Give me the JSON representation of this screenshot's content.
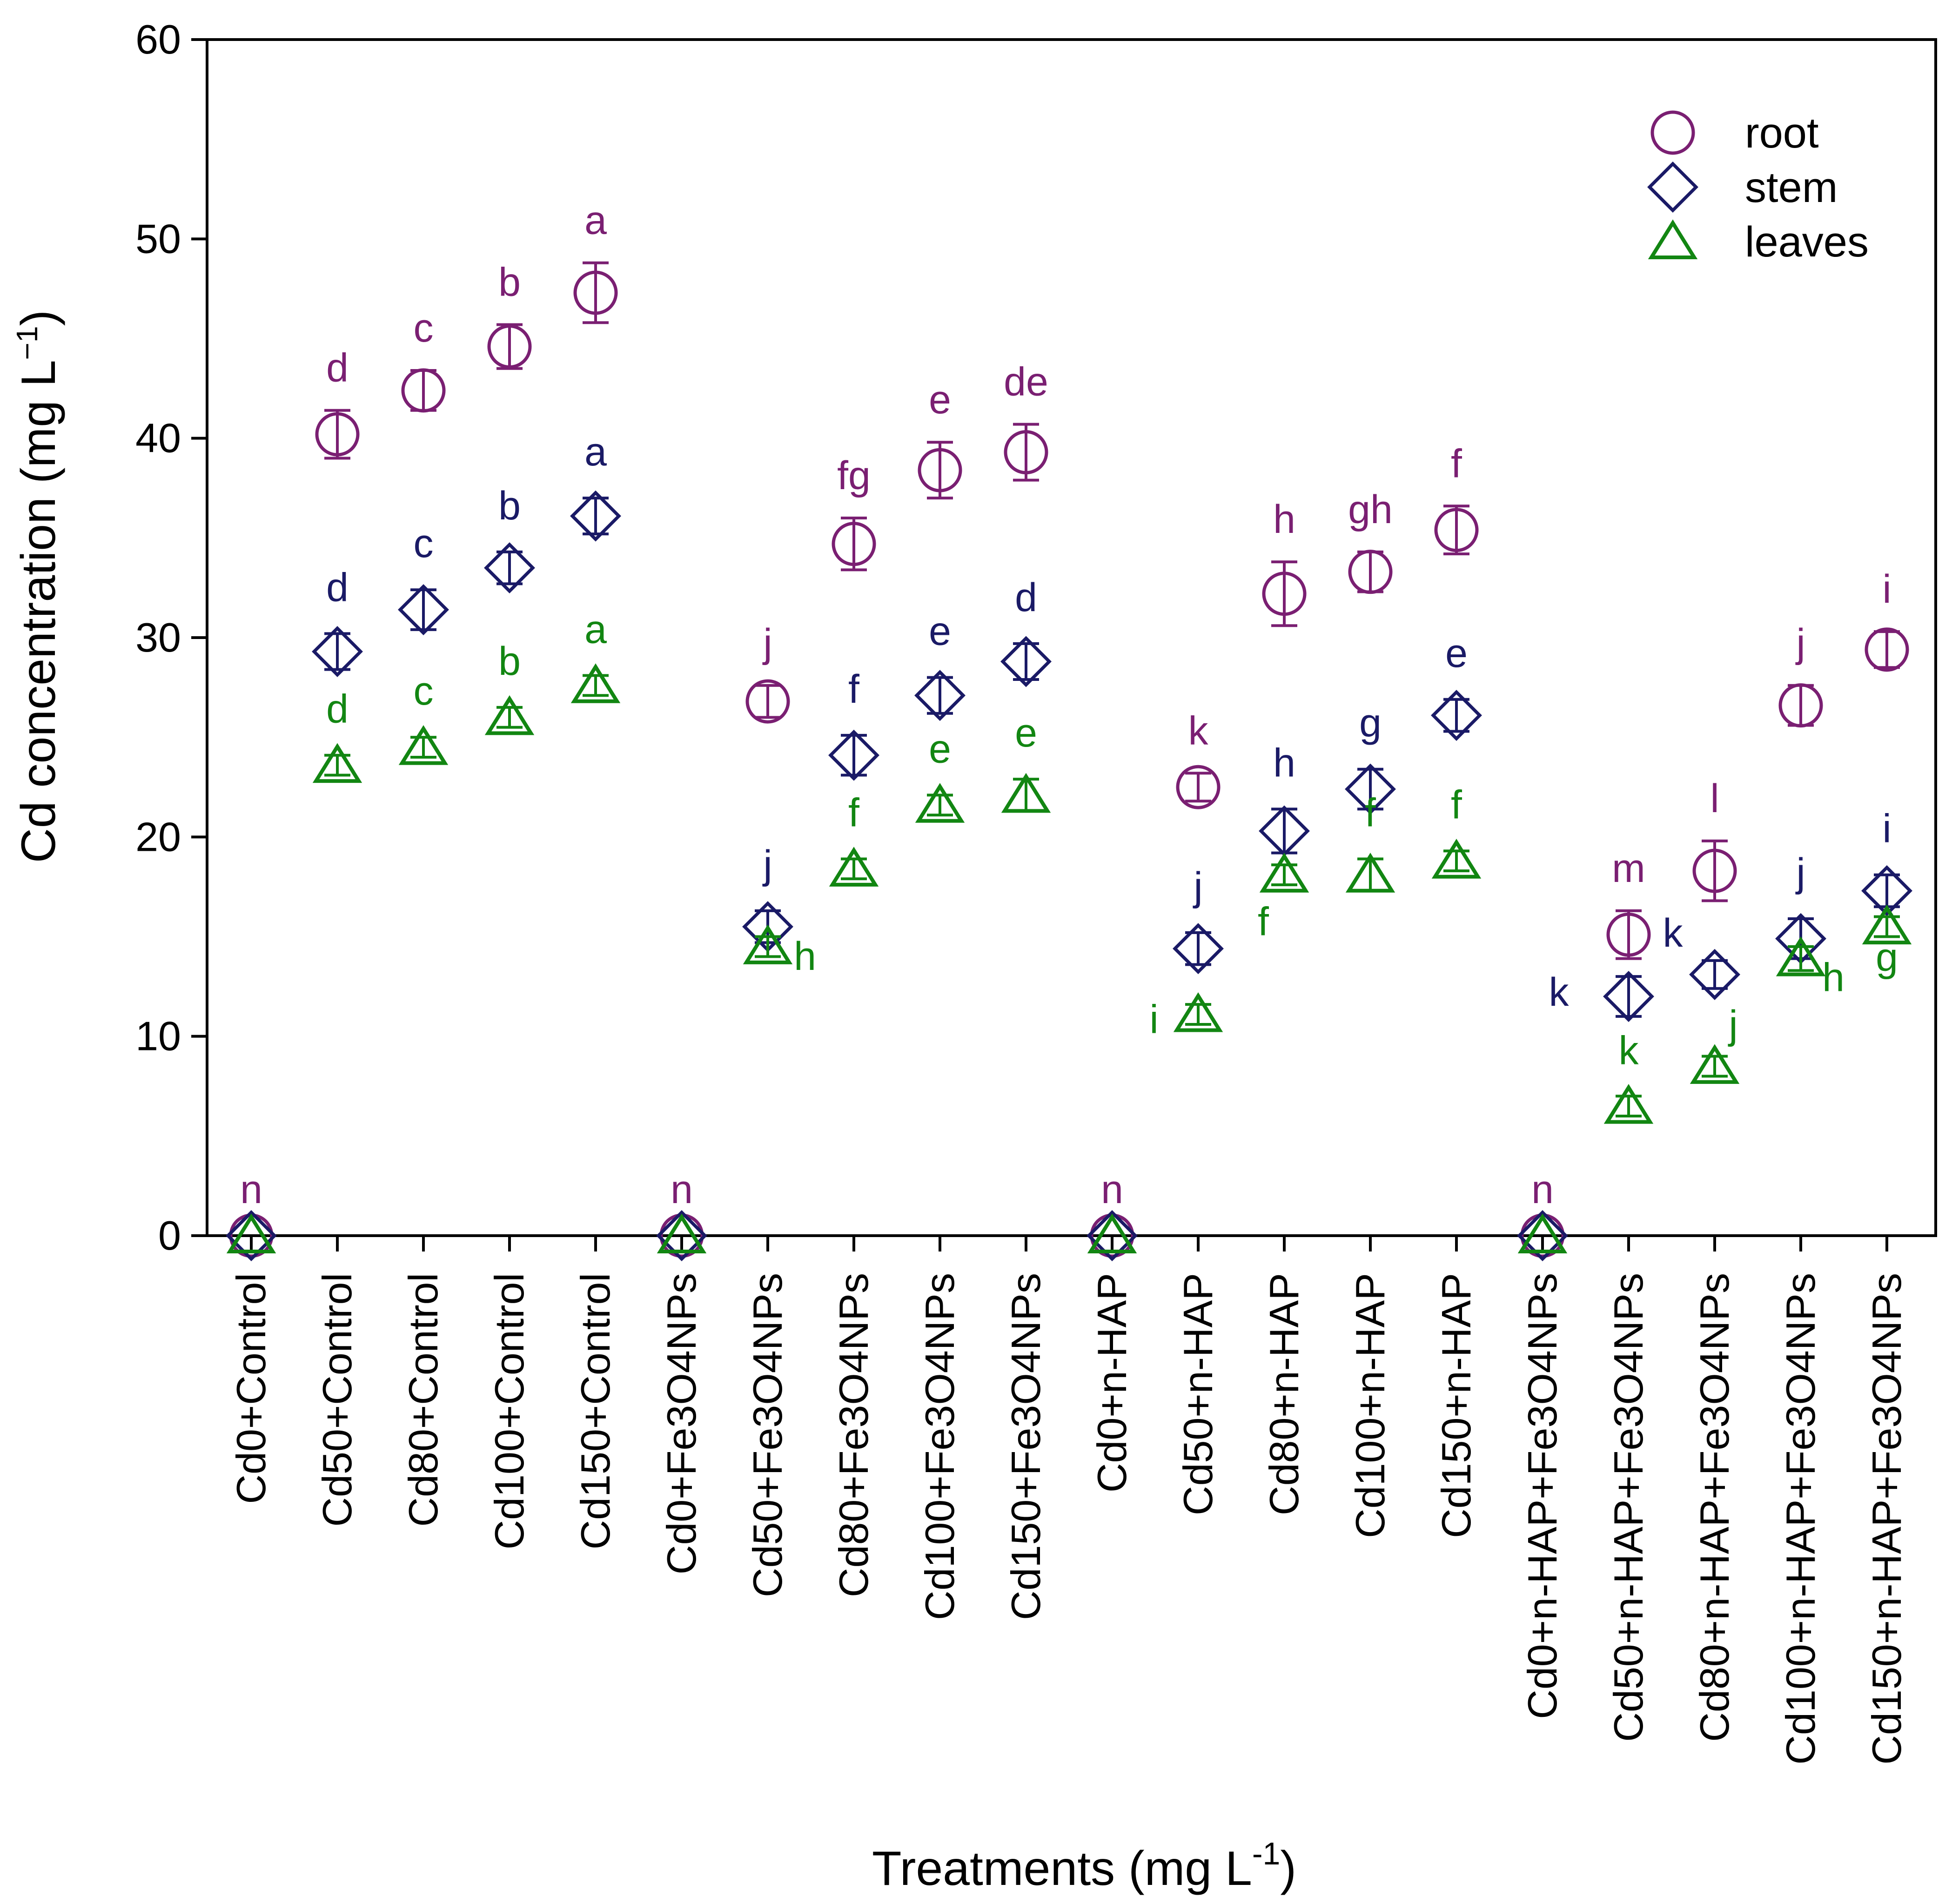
{
  "chart_data": {
    "type": "scatter",
    "title": "",
    "xlabel": "Treatments (mg L",
    "xlabel_sup": "-1",
    "xlabel_end": ")",
    "ylabel": "Cd concentration (mg L",
    "ylabel_sup": "−1",
    "ylabel_end": ")",
    "ylim": [
      0,
      60
    ],
    "yticks": [
      0,
      10,
      20,
      30,
      40,
      50,
      60
    ],
    "legend_position": "top-right",
    "categories": [
      "Cd0+Control",
      "Cd50+Control",
      "Cd80+Control",
      "Cd100+Control",
      "Cd150+Control",
      "Cd0+Fe3O4NPs",
      "Cd50+Fe3O4NPs",
      "Cd80+Fe3O4NPs",
      "Cd100+Fe3O4NPs",
      "Cd150+Fe3O4NPs",
      "Cd0+n-HAP",
      "Cd50+n-HAP",
      "Cd80+n-HAP",
      "Cd100+n-HAP",
      "Cd150+n-HAP",
      "Cd0+n-HAP+Fe3O4NPs",
      "Cd50+n-HAP+Fe3O4NPs",
      "Cd80+n-HAP+Fe3O4NPs",
      "Cd100+n-HAP+Fe3O4NPs",
      "Cd150+n-HAP+Fe3O4NPs"
    ],
    "series": [
      {
        "name": "root",
        "marker": "circle",
        "color": "#7a1f72",
        "values": [
          0,
          40.2,
          42.4,
          44.6,
          47.3,
          0,
          26.8,
          34.7,
          38.4,
          39.3,
          0,
          22.5,
          32.2,
          33.3,
          35.4,
          0,
          15.1,
          18.3,
          26.6,
          29.4
        ],
        "errors": [
          0,
          1.2,
          1.0,
          1.1,
          1.5,
          0,
          0.8,
          1.3,
          1.4,
          1.4,
          0,
          0.7,
          1.6,
          1.0,
          1.2,
          0,
          1.2,
          1.5,
          1.0,
          0.9
        ],
        "letters": [
          "n",
          "d",
          "c",
          "b",
          "a",
          "n",
          "j",
          "fg",
          "e",
          "de",
          "n",
          "k",
          "h",
          "gh",
          "f",
          "n",
          "m",
          "l",
          "j",
          "i"
        ]
      },
      {
        "name": "stem",
        "marker": "diamond",
        "color": "#1a1a66",
        "values": [
          0,
          29.3,
          31.4,
          33.5,
          36.1,
          0,
          15.5,
          24.1,
          27.1,
          28.8,
          0,
          14.4,
          20.3,
          22.4,
          26.1,
          0,
          12.0,
          13.1,
          14.9,
          17.3
        ],
        "errors": [
          0,
          0.9,
          1.0,
          0.8,
          0.9,
          0,
          0.8,
          1.0,
          0.9,
          0.9,
          0,
          0.8,
          1.1,
          1.0,
          0.8,
          0,
          1.0,
          0.7,
          1.0,
          0.8
        ],
        "letters": [
          "",
          "d",
          "c",
          "b",
          "a",
          "",
          "j",
          "f",
          "e",
          "d",
          "",
          "j",
          "h",
          "g",
          "e",
          "",
          "k",
          "k",
          "j",
          "i"
        ]
      },
      {
        "name": "leaves",
        "marker": "triangle",
        "color": "#128612",
        "values": [
          0,
          23.6,
          24.5,
          26.0,
          27.6,
          0,
          14.5,
          18.4,
          21.6,
          22.1,
          0,
          11.1,
          18.1,
          18.1,
          18.8,
          0,
          6.5,
          8.5,
          13.9,
          15.5
        ],
        "errors": [
          0,
          0.5,
          0.5,
          0.5,
          0.5,
          0,
          0.5,
          0.5,
          0.5,
          0.8,
          0,
          0.5,
          0.5,
          0.8,
          0.5,
          0,
          0.5,
          0.5,
          0.6,
          0.5
        ],
        "letters": [
          "",
          "d",
          "c",
          "b",
          "a",
          "",
          "h",
          "f",
          "e",
          "e",
          "",
          "i",
          "f",
          "f",
          "f",
          "",
          "k",
          "j",
          "h",
          "g"
        ]
      }
    ]
  }
}
